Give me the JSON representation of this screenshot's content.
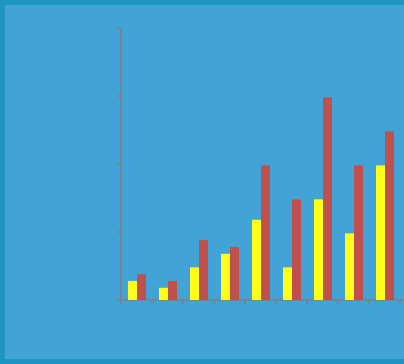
{
  "chart_data": {
    "type": "bar",
    "title": "",
    "xlabel": "",
    "ylabel": "",
    "ylim": [
      0,
      4
    ],
    "grid": false,
    "legend": "none",
    "categories": [
      "",
      "",
      "",
      "",
      "",
      "",
      "",
      "",
      ""
    ],
    "series": [
      {
        "color": "#ffff1a",
        "values": [
          0.28,
          0.18,
          0.48,
          0.68,
          1.18,
          0.48,
          1.48,
          0.98,
          1.98
        ]
      },
      {
        "color": "#c0504d",
        "values": [
          0.38,
          0.28,
          0.88,
          0.78,
          1.98,
          1.48,
          2.98,
          1.98,
          2.48
        ]
      }
    ]
  },
  "colors": {
    "background": "#42a3d6",
    "frame": "#1e95c2",
    "axis": "#808080"
  }
}
